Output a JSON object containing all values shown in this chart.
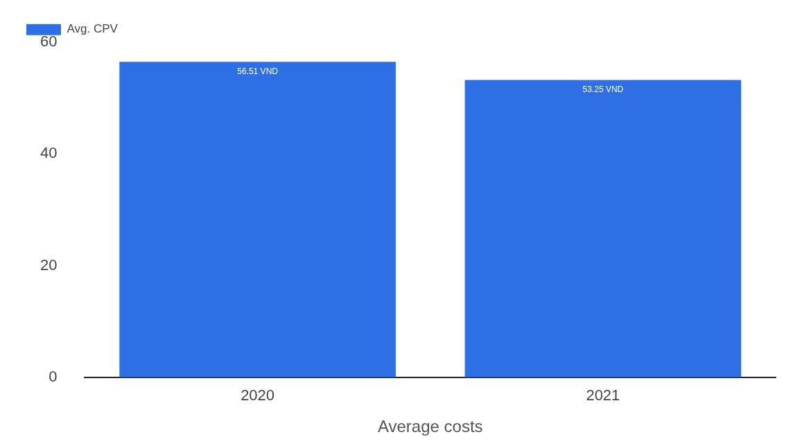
{
  "chart_data": {
    "type": "bar",
    "xlabel": "Average costs",
    "categories": [
      "2020",
      "2021"
    ],
    "series": [
      {
        "name": "Avg. CPV",
        "color": "#2e6fe6",
        "values": [
          56.51,
          53.25
        ],
        "value_labels": [
          "56.51 VND",
          "53.25 VND"
        ]
      }
    ],
    "ylim": [
      0,
      60
    ],
    "yticks": [
      0,
      20,
      40,
      60
    ],
    "grid": false,
    "legend": "top left"
  }
}
